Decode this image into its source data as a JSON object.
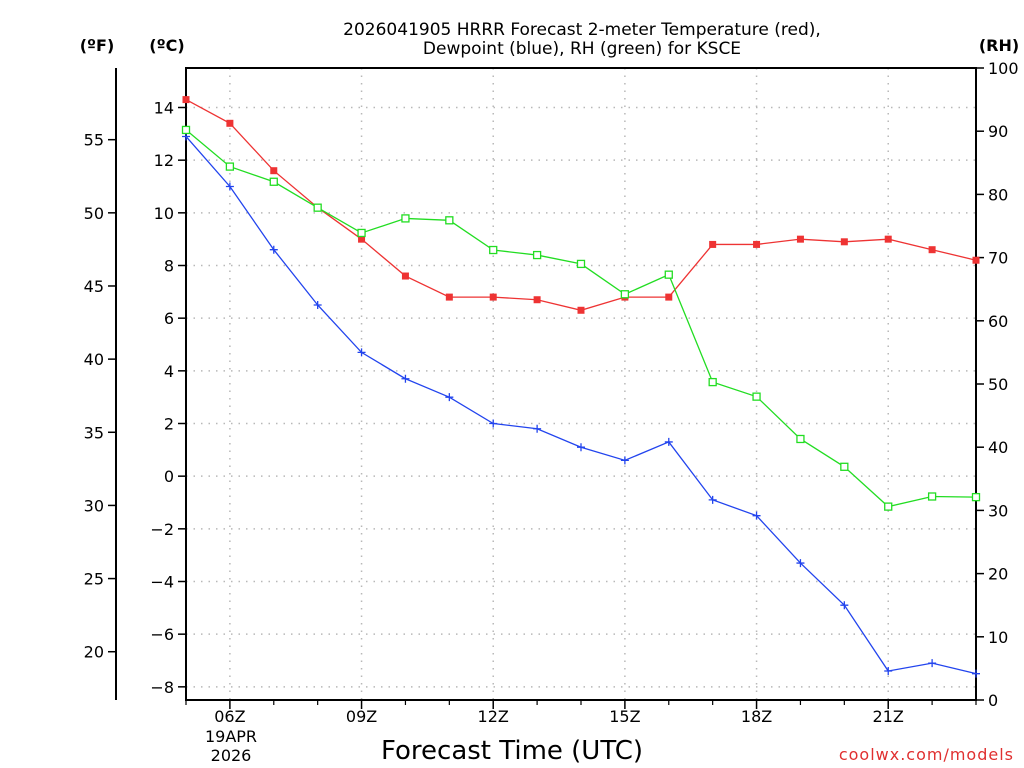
{
  "chart_data": {
    "type": "line",
    "title_line1": "2026041905 HRRR Forecast 2-meter Temperature (red),",
    "title_line2": "Dewpoint (blue), RH (green) for KSCE",
    "xlabel": "Forecast Time (UTC)",
    "credit": "coolwx.com/models",
    "unit_left_f": "(ºF)",
    "unit_left_c": "(ºC)",
    "unit_right_rh": "(RH)",
    "date_line1": "19APR",
    "date_line2": "2026",
    "x_hours": [
      5,
      6,
      7,
      8,
      9,
      10,
      11,
      12,
      13,
      14,
      15,
      16,
      17,
      18,
      19,
      20,
      21,
      22,
      23
    ],
    "x_ticks": [
      {
        "hour": 6,
        "label": "06Z"
      },
      {
        "hour": 9,
        "label": "09Z"
      },
      {
        "hour": 12,
        "label": "12Z"
      },
      {
        "hour": 15,
        "label": "15Z"
      },
      {
        "hour": 18,
        "label": "18Z"
      },
      {
        "hour": 21,
        "label": "21Z"
      }
    ],
    "xlim": [
      5,
      23
    ],
    "celsius_axis": {
      "ylim": [
        -8.5,
        15.5
      ],
      "ticks": [
        -8,
        -6,
        -4,
        -2,
        0,
        2,
        4,
        6,
        8,
        10,
        12,
        14
      ],
      "labels": [
        "−8",
        "−6",
        "−4",
        "−2",
        "0",
        "2",
        "4",
        "6",
        "8",
        "10",
        "12",
        "14"
      ]
    },
    "fahrenheit_axis": {
      "ticks": [
        20,
        25,
        30,
        35,
        40,
        45,
        50,
        55
      ],
      "labels": [
        "20",
        "25",
        "30",
        "35",
        "40",
        "45",
        "50",
        "55"
      ]
    },
    "rh_axis": {
      "ylim": [
        0,
        100
      ],
      "ticks": [
        0,
        10,
        20,
        30,
        40,
        50,
        60,
        70,
        80,
        90,
        100
      ],
      "labels": [
        "0",
        "10",
        "20",
        "30",
        "40",
        "50",
        "60",
        "70",
        "80",
        "90",
        "100"
      ]
    },
    "series": [
      {
        "name": "Temperature",
        "units": "°C",
        "color": "#ee3333",
        "marker": "filled-square",
        "values": [
          14.3,
          13.4,
          11.6,
          10.2,
          9.0,
          7.6,
          6.8,
          6.8,
          6.7,
          6.3,
          6.8,
          6.8,
          8.8,
          8.8,
          9.0,
          8.9,
          9.0,
          8.6,
          8.2
        ]
      },
      {
        "name": "Dewpoint",
        "units": "°C",
        "color": "#2244ee",
        "marker": "plus",
        "values": [
          12.9,
          11.0,
          8.6,
          6.5,
          4.7,
          3.7,
          3.0,
          2.0,
          1.8,
          1.1,
          0.6,
          1.3,
          -0.9,
          -1.5,
          -3.3,
          -4.9,
          -7.4,
          -7.1,
          -7.5
        ]
      },
      {
        "name": "RH",
        "units": "%",
        "color": "#22dd22",
        "marker": "open-square",
        "values": [
          90.2,
          84.4,
          82.0,
          77.9,
          73.9,
          76.2,
          75.9,
          71.2,
          70.4,
          69.0,
          64.2,
          67.3,
          50.3,
          48.0,
          41.3,
          36.9,
          30.6,
          32.2,
          32.1
        ]
      }
    ]
  }
}
